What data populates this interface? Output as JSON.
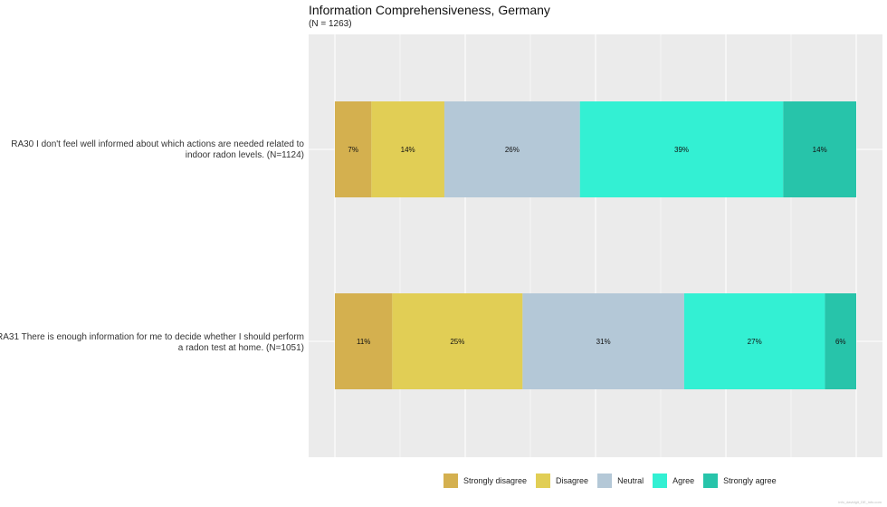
{
  "chart_data": {
    "type": "bar",
    "orientation": "horizontal-stacked",
    "title": "Information Comprehensiveness, Germany",
    "subtitle": "(N = 1263)",
    "categories": [
      {
        "line1": "RA30 I don't feel well informed about which actions are needed related to",
        "line2": "indoor radon levels. (N=1124)"
      },
      {
        "line1": "RA31 There is enough information for me to decide whether I should perform",
        "line2": "a radon test at home. (N=1051)"
      }
    ],
    "series": [
      {
        "name": "Strongly disagree",
        "color": "#D4B04F",
        "values": [
          7,
          11
        ],
        "labels": [
          "7%",
          "11%"
        ]
      },
      {
        "name": "Disagree",
        "color": "#E1CE55",
        "values": [
          14,
          25
        ],
        "labels": [
          "14%",
          "25%"
        ]
      },
      {
        "name": "Neutral",
        "color": "#B4C8D7",
        "values": [
          26,
          31
        ],
        "labels": [
          "26%",
          "31%"
        ]
      },
      {
        "name": "Agree",
        "color": "#33F0D3",
        "values": [
          39,
          27
        ],
        "labels": [
          "39%",
          "27%"
        ]
      },
      {
        "name": "Strongly agree",
        "color": "#27C4AA",
        "values": [
          14,
          6
        ],
        "labels": [
          "14%",
          "6%"
        ]
      }
    ],
    "xlim": [
      0,
      100
    ],
    "grid": true,
    "legend_position": "bottom"
  },
  "watermark": "info_davidgit_DE_info.com"
}
